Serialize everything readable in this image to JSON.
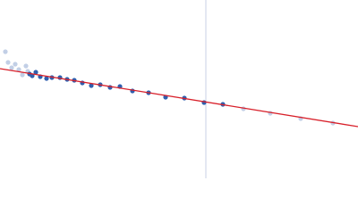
{
  "chart_data": {
    "type": "scatter",
    "xlim": [
      0,
      400
    ],
    "ylim": [
      0,
      200
    ],
    "vline_x": 230,
    "vline_color": "#c8d0e4",
    "series": [
      {
        "type": "scatter",
        "color": "#c2cfe6",
        "x": [
          6,
          9,
          13,
          17,
          21,
          25,
          29,
          31,
          272,
          302,
          336,
          372
        ],
        "values": [
          142,
          130,
          124,
          128,
          122,
          116,
          126,
          120,
          78,
          73,
          67,
          62
        ]
      },
      {
        "type": "scatter",
        "color": "#2f5fae",
        "x": [
          33,
          36,
          40,
          45,
          52,
          58,
          67,
          75,
          83,
          92,
          102,
          112,
          123,
          134,
          148,
          166,
          185,
          206,
          228,
          249
        ],
        "values": [
          117,
          115,
          119,
          114,
          112,
          113,
          113,
          111,
          110,
          107,
          104,
          105,
          102,
          103,
          98,
          96,
          91,
          90,
          85,
          83
        ]
      },
      {
        "type": "line",
        "color": "#d8202a",
        "x": [
          0,
          400
        ],
        "values": [
          123,
          58
        ]
      }
    ]
  }
}
